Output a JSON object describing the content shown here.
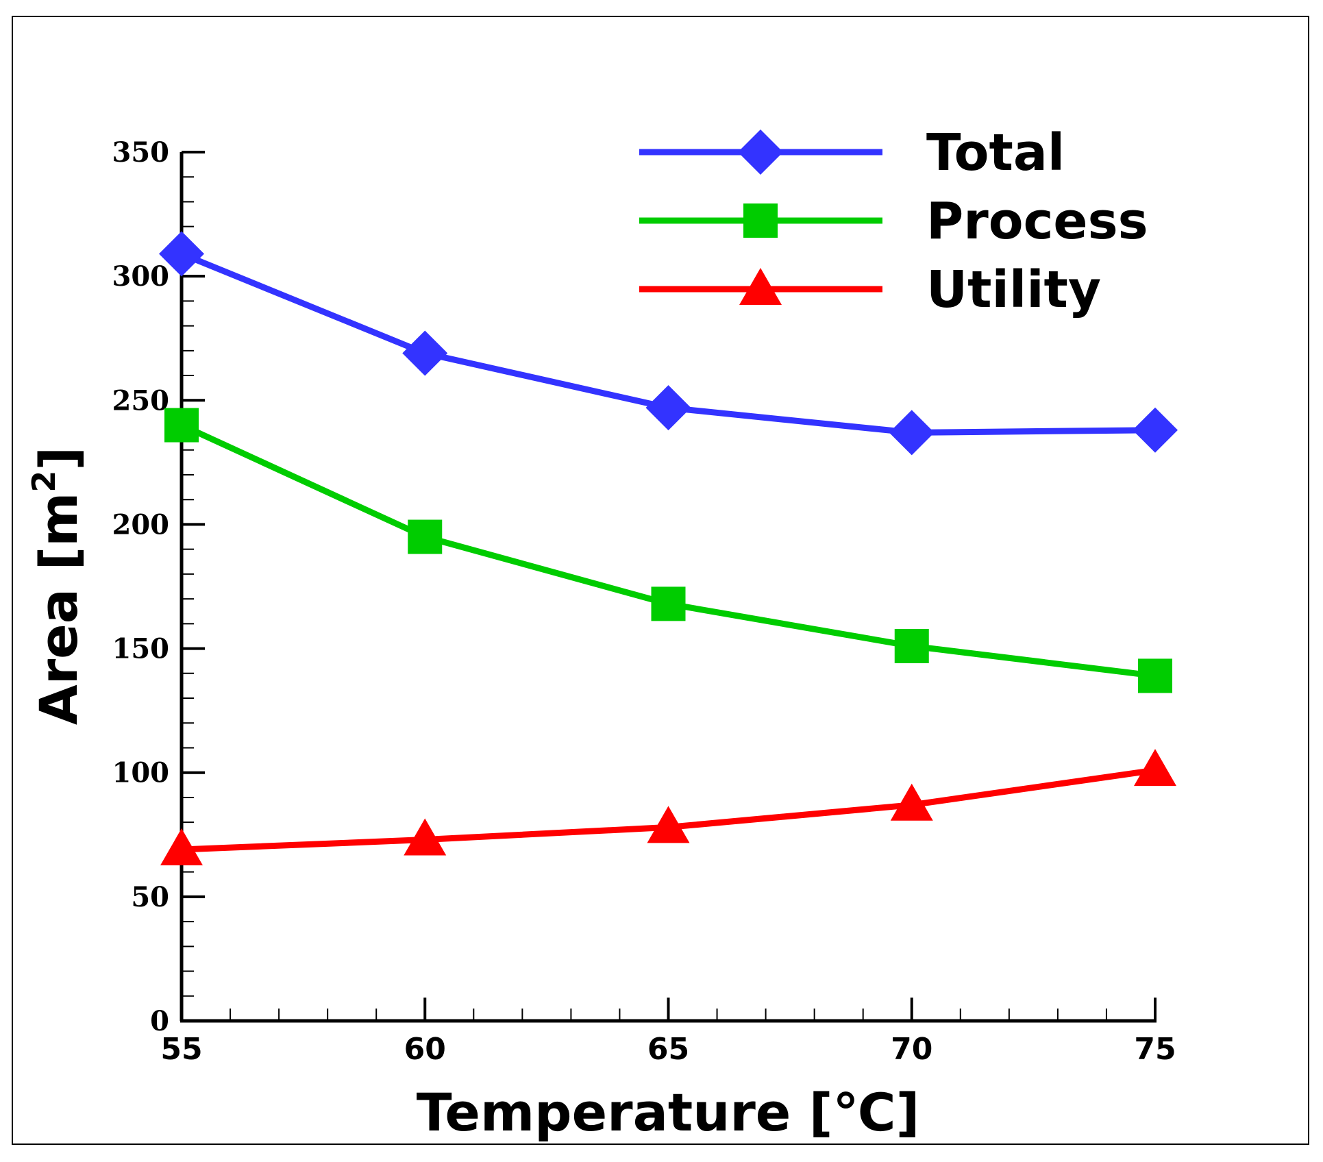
{
  "chart_data": {
    "type": "line",
    "title": "",
    "xlabel": "Temperature [℃]",
    "ylabel": "Area [m",
    "ylabel_superscript": "2",
    "ylabel_suffix": "]",
    "x": [
      55,
      60,
      65,
      70,
      75
    ],
    "xlim": [
      55,
      75
    ],
    "ylim": [
      0,
      350
    ],
    "xticks": [
      "55",
      "60",
      "65",
      "70",
      "75"
    ],
    "yticks": [
      "0",
      "50",
      "100",
      "150",
      "200",
      "250",
      "300",
      "350"
    ],
    "grid": false,
    "legend_position": "top-right",
    "series": [
      {
        "name": "Total",
        "values": [
          309,
          269,
          247,
          237,
          238
        ],
        "color": "#3333ff",
        "marker": "diamond"
      },
      {
        "name": "Process",
        "values": [
          240,
          195,
          168,
          151,
          139
        ],
        "color": "#00cc00",
        "marker": "square"
      },
      {
        "name": "Utility",
        "values": [
          69,
          73,
          78,
          87,
          101
        ],
        "color": "#ff0000",
        "marker": "triangle"
      }
    ]
  }
}
